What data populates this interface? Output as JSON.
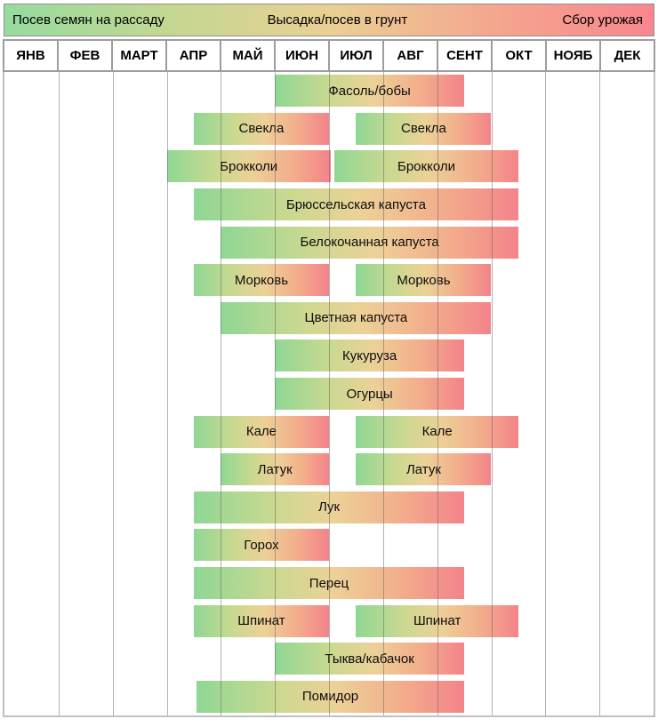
{
  "legend": {
    "labels": [
      "Посев семян на рассаду",
      "Высадка/посев в грунт",
      "Сбор урожая"
    ]
  },
  "months": [
    "ЯНВ",
    "ФЕВ",
    "МАРТ",
    "АПР",
    "МАЙ",
    "ИЮН",
    "ИЮЛ",
    "АВГ",
    "СЕНТ",
    "ОКТ",
    "НОЯБ",
    "ДЕК"
  ],
  "colors": {
    "phase_seed_green": "#96db9f",
    "phase_ground_tan": "#e9d094",
    "phase_harvest_salmon": "#f8868e",
    "grid_line": "#9d9d9d"
  },
  "chart_data": {
    "type": "gantt",
    "x_unit": "months",
    "x_range": [
      0,
      12
    ],
    "x_categories": [
      "ЯНВ",
      "ФЕВ",
      "МАРТ",
      "АПР",
      "МАЙ",
      "ИЮН",
      "ИЮЛ",
      "АВГ",
      "СЕНТ",
      "ОКТ",
      "НОЯБ",
      "ДЕК"
    ],
    "legend_entries": [
      "Посев семян на рассаду",
      "Высадка/посев в грунт",
      "Сбор урожая"
    ],
    "legend_position": "top",
    "grid": true,
    "bar_gradient": [
      "#8fd794",
      "#ecd197",
      "#f3838b"
    ],
    "rows": [
      {
        "label": "Фасоль/бобы",
        "bars": [
          [
            5.0,
            8.5
          ]
        ]
      },
      {
        "label": "Свекла",
        "bars": [
          [
            3.5,
            6.0
          ],
          [
            6.5,
            9.0
          ]
        ]
      },
      {
        "label": "Брокколи",
        "bars": [
          [
            3.0,
            6.03
          ],
          [
            6.1,
            9.5
          ]
        ]
      },
      {
        "label": "Брюссельская капуста",
        "bars": [
          [
            3.5,
            9.5
          ]
        ]
      },
      {
        "label": "Белокочанная капуста",
        "bars": [
          [
            4.0,
            9.5
          ]
        ]
      },
      {
        "label": "Морковь",
        "bars": [
          [
            3.5,
            6.0
          ],
          [
            6.5,
            9.0
          ]
        ]
      },
      {
        "label": "Цветная капуста",
        "bars": [
          [
            4.0,
            9.0
          ]
        ]
      },
      {
        "label": "Кукуруза",
        "bars": [
          [
            5.0,
            8.5
          ]
        ]
      },
      {
        "label": "Огурцы",
        "bars": [
          [
            5.0,
            8.5
          ]
        ]
      },
      {
        "label": "Кале",
        "bars": [
          [
            3.5,
            6.0
          ],
          [
            6.5,
            9.5
          ]
        ]
      },
      {
        "label": "Латук",
        "bars": [
          [
            4.0,
            6.0
          ],
          [
            6.5,
            9.0
          ]
        ]
      },
      {
        "label": "Лук",
        "bars": [
          [
            3.5,
            8.5
          ]
        ]
      },
      {
        "label": "Горох",
        "bars": [
          [
            3.5,
            6.0
          ]
        ]
      },
      {
        "label": "Перец",
        "bars": [
          [
            3.5,
            8.5
          ]
        ]
      },
      {
        "label": "Шпинат",
        "bars": [
          [
            3.5,
            6.0
          ],
          [
            6.5,
            9.5
          ]
        ]
      },
      {
        "label": "Тыква/кабачок",
        "bars": [
          [
            5.0,
            8.5
          ]
        ]
      },
      {
        "label": "Помидор",
        "bars": [
          [
            3.55,
            8.5
          ]
        ]
      }
    ]
  }
}
